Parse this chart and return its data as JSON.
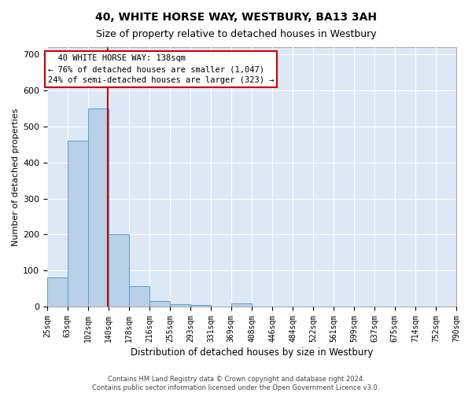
{
  "title": "40, WHITE HORSE WAY, WESTBURY, BA13 3AH",
  "subtitle": "Size of property relative to detached houses in Westbury",
  "xlabel": "Distribution of detached houses by size in Westbury",
  "ylabel": "Number of detached properties",
  "footer_line1": "Contains HM Land Registry data © Crown copyright and database right 2024.",
  "footer_line2": "Contains public sector information licensed under the Open Government Licence v3.0.",
  "bin_edges": [
    25,
    63,
    102,
    140,
    178,
    216,
    255,
    293,
    331,
    369,
    408,
    446,
    484,
    522,
    561,
    599,
    637,
    675,
    714,
    752,
    790
  ],
  "bar_heights": [
    80,
    460,
    550,
    200,
    57,
    15,
    7,
    5,
    0,
    8,
    0,
    0,
    0,
    0,
    0,
    0,
    0,
    0,
    0,
    0
  ],
  "bar_color": "#b8d0e8",
  "bar_edge_color": "#5a9ec8",
  "property_size": 138,
  "vline_color": "#cc0000",
  "annotation_text": "  40 WHITE HORSE WAY: 138sqm\n← 76% of detached houses are smaller (1,047)\n24% of semi-detached houses are larger (323) →",
  "annotation_box_color": "white",
  "annotation_border_color": "#cc0000",
  "ylim": [
    0,
    720
  ],
  "yticks": [
    0,
    100,
    200,
    300,
    400,
    500,
    600,
    700
  ],
  "xlim": [
    25,
    790
  ],
  "background_color": "#dce8f5",
  "grid_color": "white",
  "title_fontsize": 10,
  "subtitle_fontsize": 9,
  "ylabel_fontsize": 8,
  "xlabel_fontsize": 8.5,
  "tick_fontsize": 7,
  "annotation_fontsize": 7.5,
  "footer_fontsize": 6
}
